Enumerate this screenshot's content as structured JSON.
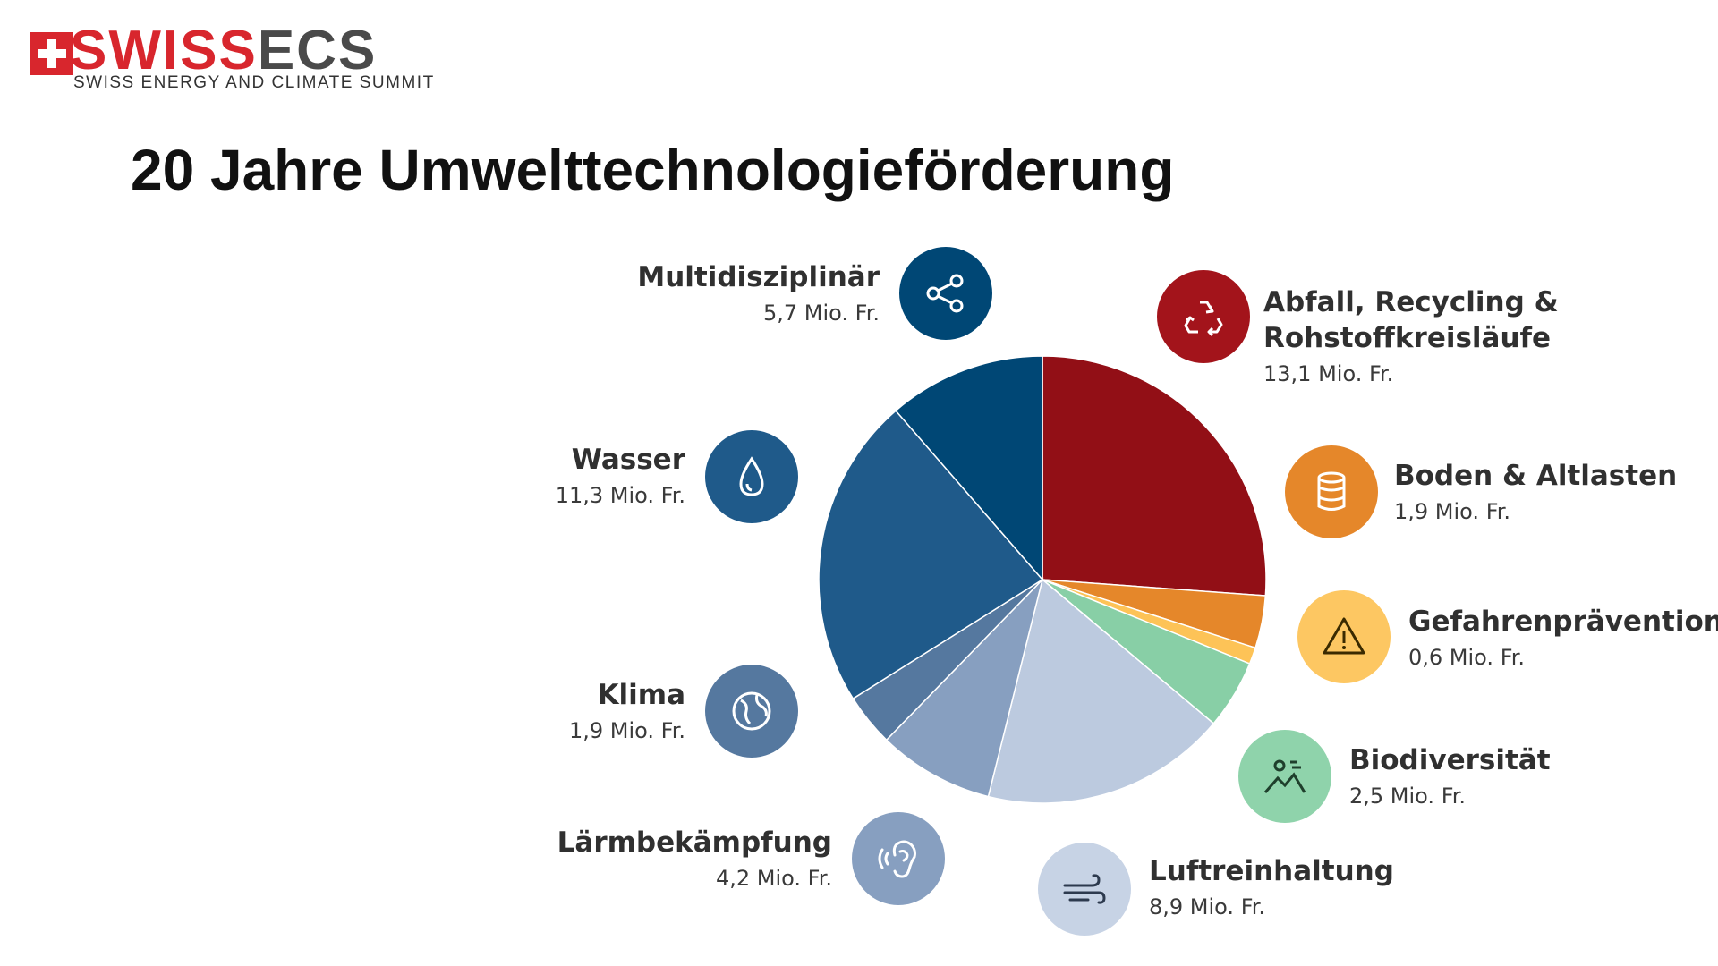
{
  "logo": {
    "word_red": "SWISS",
    "word_gray": "ECS",
    "tagline": "SWISS ENERGY AND CLIMATE SUMMIT",
    "brand_red": "#d8262d",
    "brand_gray": "#4a4a4a"
  },
  "title": "20 Jahre Umwelttechnologieförderung",
  "chart_data": {
    "type": "pie",
    "title": "",
    "unit": "Mio. Fr.",
    "start": "12 o'clock",
    "direction": "clockwise",
    "slices": [
      {
        "label": "Abfall, Recycling & Rohstoffkreisläufe",
        "value": 13.1,
        "value_label": "13,1 Mio. Fr.",
        "color": "#920f16",
        "icon": "recycle-icon",
        "icon_color": "#ffffff",
        "icon_bg": "#a3141b"
      },
      {
        "label": "Boden & Altlasten",
        "value": 1.9,
        "value_label": "1,9 Mio. Fr.",
        "color": "#e5872a",
        "icon": "barrel-icon",
        "icon_color": "#ffffff",
        "icon_bg": "#e5872a"
      },
      {
        "label": "Gefahrenprävention",
        "value": 0.6,
        "value_label": "0,6 Mio. Fr.",
        "color": "#fdc357",
        "icon": "warning-icon",
        "icon_color": "#3a2a00",
        "icon_bg": "#fdc762"
      },
      {
        "label": "Biodiversität",
        "value": 2.5,
        "value_label": "2,5 Mio. Fr.",
        "color": "#88cfa6",
        "icon": "landscape-icon",
        "icon_color": "#1f3f2c",
        "icon_bg": "#8fd3ab"
      },
      {
        "label": "Luftreinhaltung",
        "value": 8.9,
        "value_label": "8,9 Mio. Fr.",
        "color": "#bccadf",
        "icon": "wind-icon",
        "icon_color": "#2d3a4e",
        "icon_bg": "#c7d3e5"
      },
      {
        "label": "Lärmbekämpfung",
        "value": 4.2,
        "value_label": "4,2 Mio. Fr.",
        "color": "#879fc0",
        "icon": "ear-icon",
        "icon_color": "#ffffff",
        "icon_bg": "#879fc0"
      },
      {
        "label": "Klima",
        "value": 1.9,
        "value_label": "1,9 Mio. Fr.",
        "color": "#55789f",
        "icon": "globe-icon",
        "icon_color": "#ffffff",
        "icon_bg": "#55789f"
      },
      {
        "label": "Wasser",
        "value": 11.3,
        "value_label": "11,3 Mio. Fr.",
        "color": "#1f5a8a",
        "icon": "water-drop-icon",
        "icon_color": "#ffffff",
        "icon_bg": "#1f5a8a"
      },
      {
        "label": "Multidisziplinär",
        "value": 5.7,
        "value_label": "5,7 Mio. Fr.",
        "color": "#004775",
        "icon": "share-network-icon",
        "icon_color": "#ffffff",
        "icon_bg": "#004775"
      }
    ]
  }
}
